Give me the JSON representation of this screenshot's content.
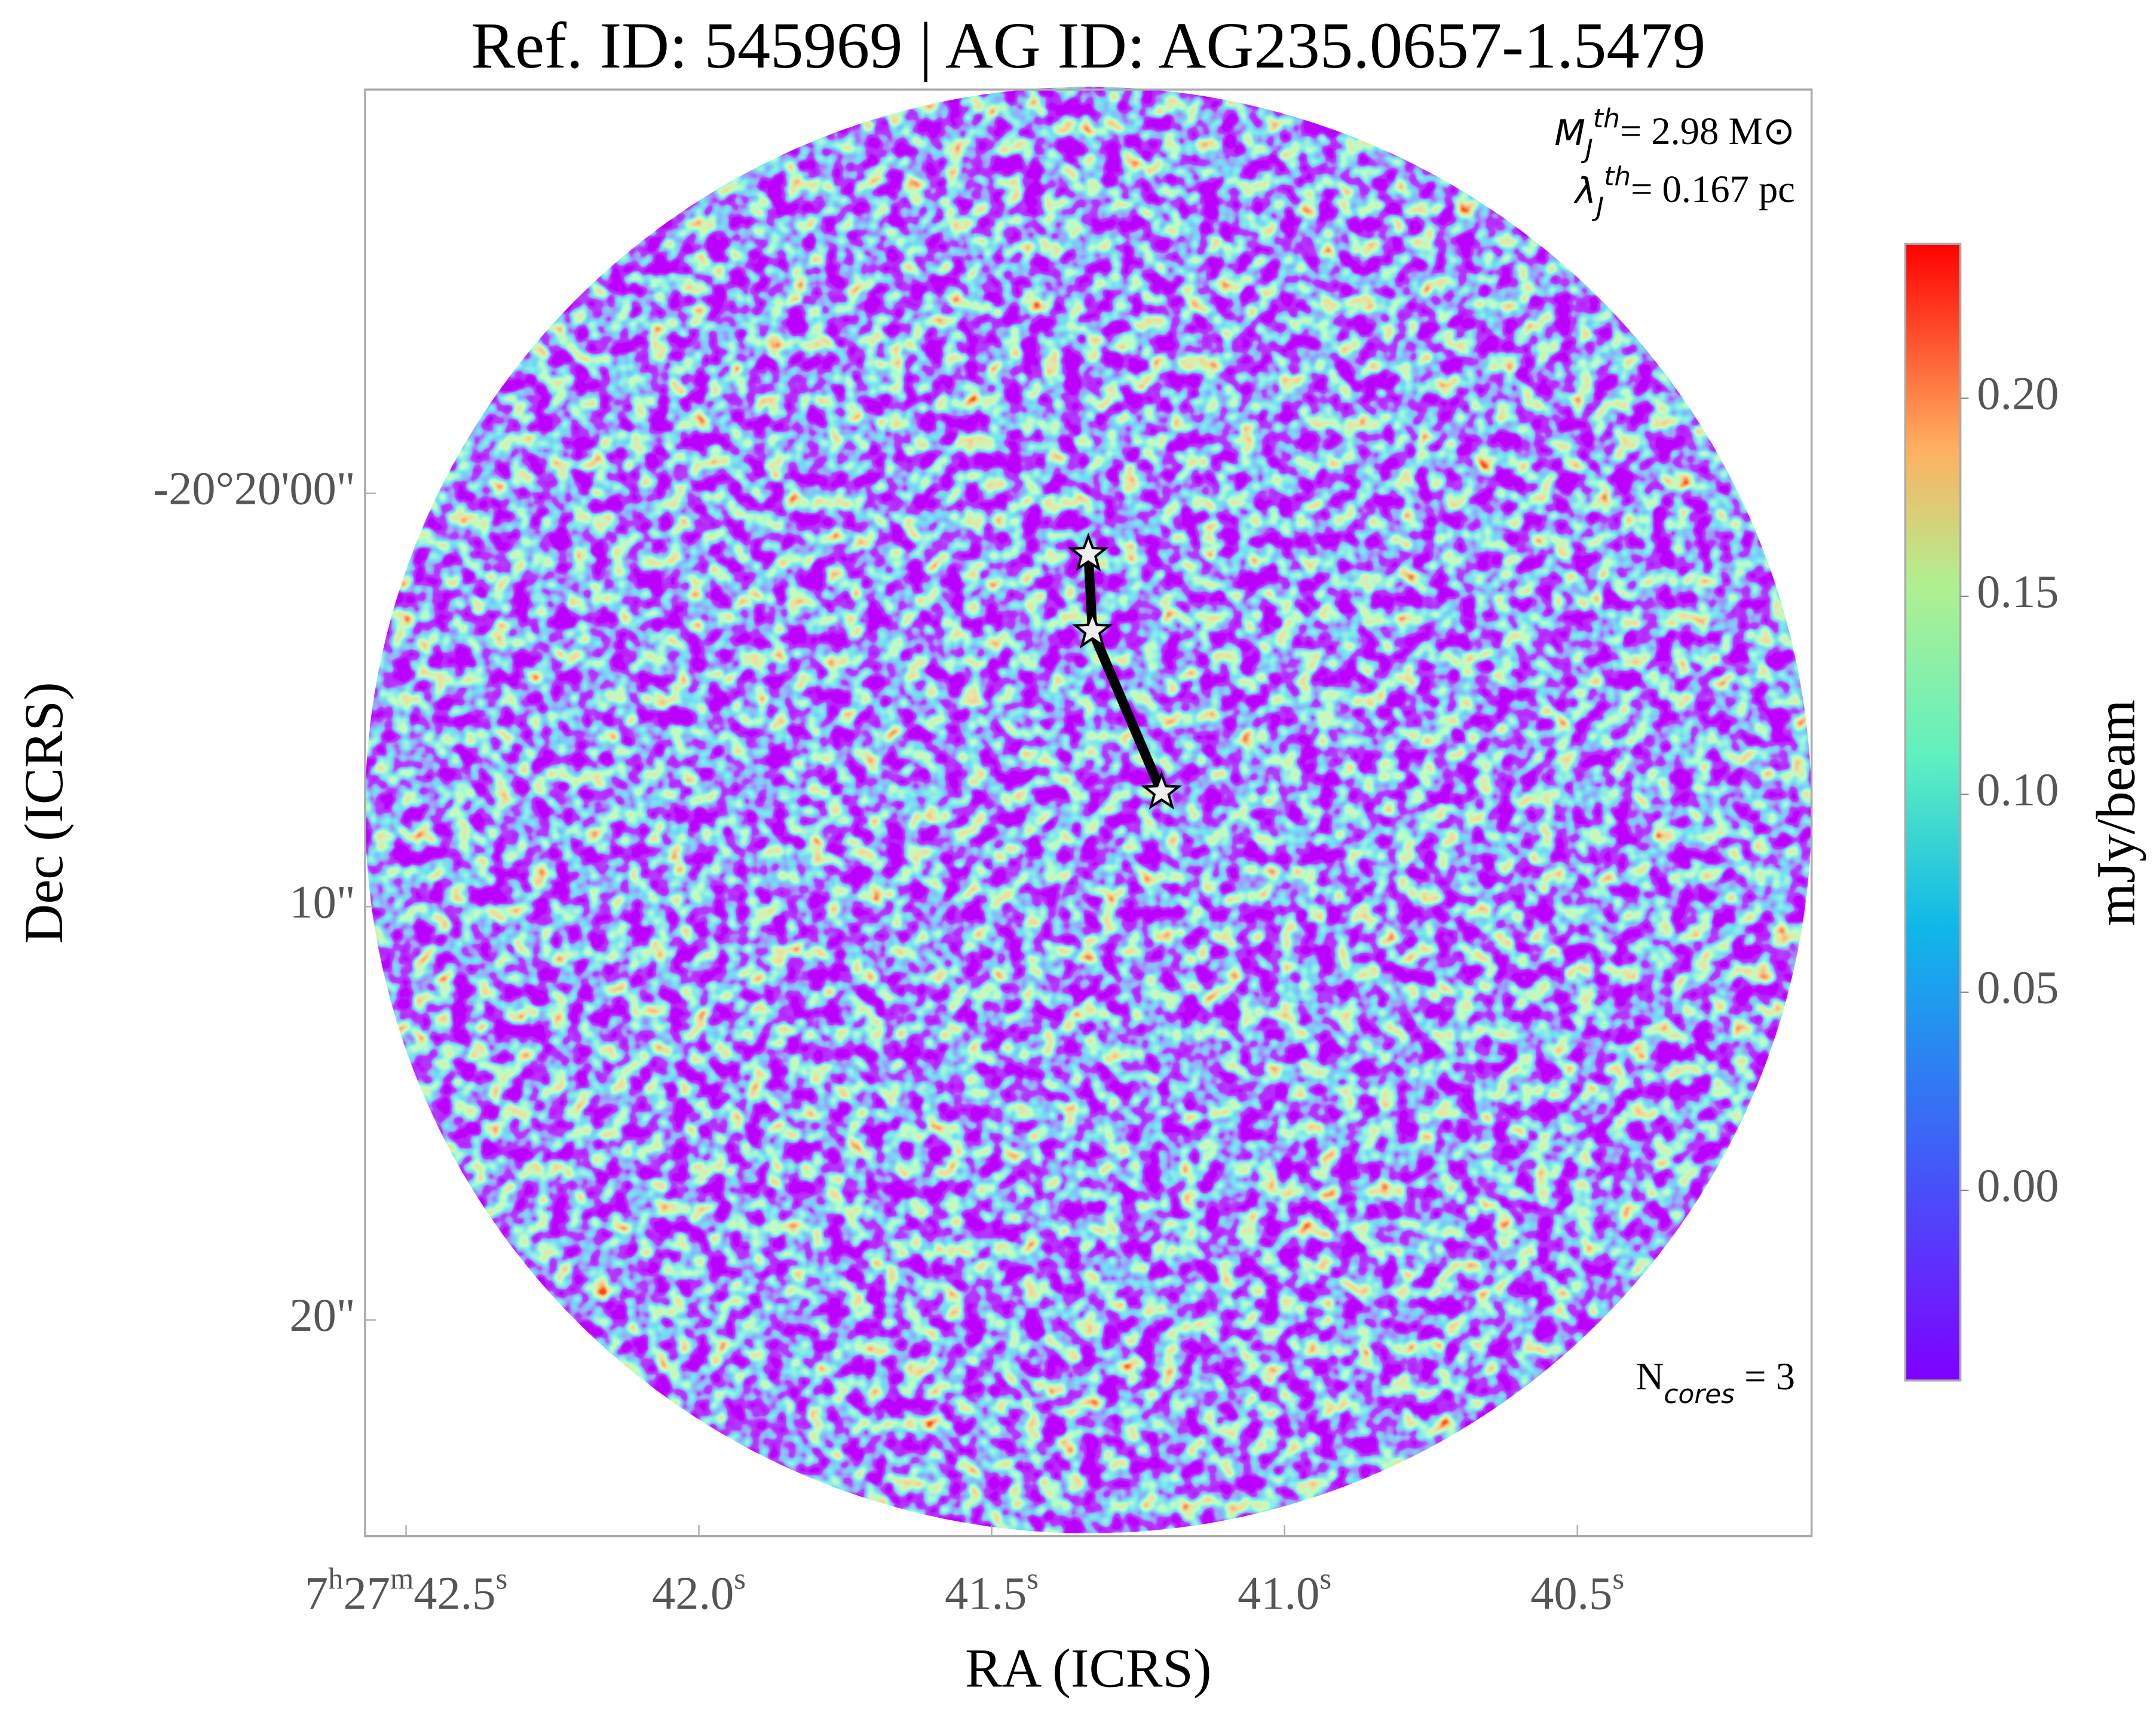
{
  "chart_data": {
    "type": "scatter",
    "title": "Ref. ID: 545969 | AG ID: AG235.0657-1.5479",
    "xlabel": "RA (ICRS)",
    "ylabel": "Dec (ICRS)",
    "x": [
      41.335,
      41.328,
      41.21
    ],
    "values": [
      1.47,
      3.33,
      7.23
    ],
    "color": "#000000",
    "marker_color": "#eeeeee",
    "xlim": [
      42.57,
      40.1
    ],
    "xticks": [
      {
        "value": 42.5,
        "label": "7h27m42.5s"
      },
      {
        "value": 42.0,
        "label": "42.0s"
      },
      {
        "value": 41.5,
        "label": "41.5s"
      },
      {
        "value": 41.0,
        "label": "41.0s"
      },
      {
        "value": 40.5,
        "label": "40.5s"
      }
    ],
    "ylim": [
      25.23,
      -9.77
    ],
    "yticks": [
      {
        "value": 0,
        "label": "-20°20'00\""
      },
      {
        "value": 10,
        "label": "10\""
      },
      {
        "value": 20,
        "label": "20\""
      }
    ],
    "annotations": [
      {
        "base": "M",
        "sub": "J",
        "sup": "th",
        "rest": "= 2.98 M⊙"
      },
      {
        "base": "λ",
        "sub": "J",
        "sup": "th",
        "rest": "= 0.167 pc"
      },
      {
        "base": "N",
        "sub": "cores",
        "rest": " = 3"
      }
    ],
    "colorbar": {
      "label": "mJy/beam",
      "lim": [
        -0.048,
        0.239
      ],
      "ticks": [
        {
          "value": 0,
          "label": "0.00"
        },
        {
          "value": 0.05,
          "label": "0.05"
        },
        {
          "value": 0.1,
          "label": "0.10"
        },
        {
          "value": 0.15,
          "label": "0.15"
        },
        {
          "value": 0.2,
          "label": "0.20"
        }
      ]
    }
  }
}
